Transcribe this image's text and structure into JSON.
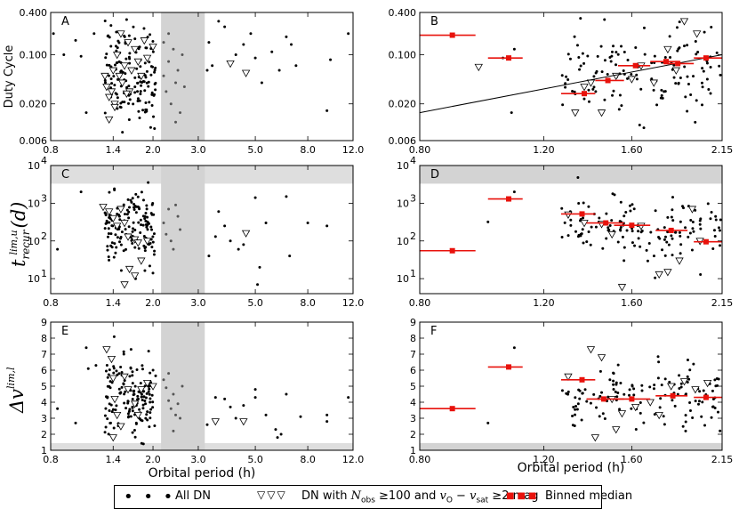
{
  "figure": {
    "xlabel_left": "Orbital period (h)",
    "xlabel_right": "Orbital period (h)",
    "ylabels": [
      "Duty Cycle",
      "t_recur^lim,u (d)",
      "Δv^lim,l"
    ],
    "ylabel_parts": {
      "t_main": "t",
      "t_sub": "recur",
      "t_sup": "lim,u",
      "t_unit": "(d)",
      "dv_main": "Δv",
      "dv_sup": "lim,l"
    }
  },
  "legend": {
    "items": [
      {
        "symbol": "dots",
        "label": "All DN"
      },
      {
        "symbol": "triangles",
        "label_pre": "DN with ",
        "label_math1": "N",
        "label_math1_sub": "obs",
        "label_mid": " ≥100 and ",
        "label_math2": "v",
        "label_math2_sub": "O",
        "label_minus": " − ",
        "label_math3": "v",
        "label_math3_sub": "sat",
        "label_post": " ≥2 mag"
      },
      {
        "symbol": "squares",
        "label": "Binned median"
      }
    ]
  },
  "colors": {
    "median": "#e8120c",
    "shade": "#d3d3d3",
    "points": "#000000",
    "gap_points": "#555555"
  },
  "chart_data": [
    {
      "panel": "A",
      "type": "scatter",
      "xscale": "log",
      "yscale": "log",
      "xlim": [
        0.8,
        12.0
      ],
      "ylim": [
        0.006,
        0.4
      ],
      "xticks": [
        0.8,
        1.4,
        2.0,
        3.0,
        5.0,
        8.0,
        12.0
      ],
      "xtick_labels": [
        "0.8",
        "1.4",
        "2.0",
        "3.0",
        "5.0",
        "8.0",
        "12.0"
      ],
      "yticks": [
        0.006,
        0.02,
        0.1,
        0.4
      ],
      "ytick_labels": [
        "0.006",
        "0.020",
        "0.100",
        "0.400"
      ],
      "shade_x": [
        2.15,
        3.18
      ],
      "triangles": [
        [
          1.3,
          0.05
        ],
        [
          1.32,
          0.035
        ],
        [
          1.35,
          0.025
        ],
        [
          1.38,
          0.03
        ],
        [
          1.4,
          0.06
        ],
        [
          1.42,
          0.02
        ],
        [
          1.45,
          0.1
        ],
        [
          1.48,
          0.05
        ],
        [
          1.5,
          0.2
        ],
        [
          1.52,
          0.04
        ],
        [
          1.55,
          0.07
        ],
        [
          1.6,
          0.15
        ],
        [
          1.62,
          0.03
        ],
        [
          1.65,
          0.06
        ],
        [
          1.7,
          0.12
        ],
        [
          1.75,
          0.08
        ],
        [
          1.8,
          0.05
        ],
        [
          1.85,
          0.16
        ],
        [
          1.9,
          0.09
        ],
        [
          2.0,
          0.13
        ],
        [
          1.35,
          0.012
        ],
        [
          1.42,
          0.018
        ],
        [
          1.58,
          0.028
        ],
        [
          4.0,
          0.075
        ],
        [
          4.6,
          0.055
        ]
      ],
      "gap_points": [
        [
          2.2,
          0.05
        ],
        [
          2.25,
          0.03
        ],
        [
          2.3,
          0.08
        ],
        [
          2.35,
          0.02
        ],
        [
          2.4,
          0.12
        ],
        [
          2.45,
          0.04
        ],
        [
          2.5,
          0.06
        ],
        [
          2.55,
          0.015
        ],
        [
          2.6,
          0.1
        ],
        [
          2.65,
          0.035
        ],
        [
          2.3,
          0.2
        ],
        [
          2.45,
          0.011
        ],
        [
          2.2,
          0.15
        ]
      ],
      "outer_points": [
        [
          0.82,
          0.2
        ],
        [
          0.9,
          0.1
        ],
        [
          1.0,
          0.16
        ],
        [
          1.05,
          0.095
        ],
        [
          1.1,
          0.015
        ],
        [
          1.18,
          0.2
        ],
        [
          3.3,
          0.15
        ],
        [
          3.4,
          0.07
        ],
        [
          3.6,
          0.3
        ],
        [
          3.8,
          0.25
        ],
        [
          4.2,
          0.1
        ],
        [
          4.5,
          0.14
        ],
        [
          5.0,
          0.09
        ],
        [
          5.3,
          0.04
        ],
        [
          5.8,
          0.11
        ],
        [
          6.2,
          0.06
        ],
        [
          6.6,
          0.18
        ],
        [
          7.2,
          0.07
        ],
        [
          9.5,
          0.016
        ],
        [
          9.8,
          0.085
        ],
        [
          11.5,
          0.2
        ],
        [
          3.25,
          0.06
        ],
        [
          4.8,
          0.2
        ],
        [
          6.9,
          0.14
        ]
      ]
    },
    {
      "panel": "B",
      "type": "scatter+median",
      "xscale": "log",
      "yscale": "log",
      "xlim": [
        0.8,
        2.15
      ],
      "ylim": [
        0.006,
        0.4
      ],
      "xticks": [
        0.8,
        1.2,
        1.6,
        2.15
      ],
      "xtick_labels": [
        "0.80",
        "1.20",
        "1.60",
        "2.15"
      ],
      "yticks": [
        0.006,
        0.02,
        0.1,
        0.4
      ],
      "ytick_labels": [
        "0.006",
        "0.020",
        "0.100",
        "0.400"
      ],
      "fit_line": [
        [
          0.8,
          0.015
        ],
        [
          2.15,
          0.1
        ]
      ],
      "median_bins": [
        {
          "x": 0.89,
          "lo": 0.8,
          "hi": 0.96,
          "y": 0.19
        },
        {
          "x": 1.07,
          "lo": 1.0,
          "hi": 1.12,
          "y": 0.09
        },
        {
          "x": 1.37,
          "lo": 1.27,
          "hi": 1.42,
          "y": 0.028
        },
        {
          "x": 1.48,
          "lo": 1.42,
          "hi": 1.56,
          "y": 0.043
        },
        {
          "x": 1.62,
          "lo": 1.53,
          "hi": 1.7,
          "y": 0.07
        },
        {
          "x": 1.79,
          "lo": 1.7,
          "hi": 1.87,
          "y": 0.08
        },
        {
          "x": 1.86,
          "lo": 1.78,
          "hi": 1.96,
          "y": 0.075
        },
        {
          "x": 2.04,
          "lo": 1.96,
          "hi": 2.15,
          "y": 0.09
        }
      ],
      "triangles": [
        [
          0.97,
          0.067
        ],
        [
          1.33,
          0.015
        ],
        [
          1.37,
          0.035
        ],
        [
          1.4,
          0.04
        ],
        [
          1.45,
          0.015
        ],
        [
          1.52,
          0.05
        ],
        [
          1.6,
          0.045
        ],
        [
          1.65,
          0.07
        ],
        [
          1.72,
          0.04
        ],
        [
          1.8,
          0.12
        ],
        [
          1.85,
          0.06
        ],
        [
          1.9,
          0.3
        ],
        [
          1.98,
          0.2
        ]
      ],
      "extra_points": [
        [
          1.08,
          0.015
        ],
        [
          1.09,
          0.12
        ],
        [
          1.05,
          0.09
        ]
      ]
    },
    {
      "panel": "C",
      "type": "scatter",
      "xscale": "log",
      "yscale": "log",
      "xlim": [
        0.8,
        12.0
      ],
      "ylim": [
        4,
        10000
      ],
      "xticks": [
        0.8,
        1.4,
        2.0,
        3.0,
        5.0,
        8.0,
        12.0
      ],
      "xtick_labels": [
        "0.8",
        "1.4",
        "2.0",
        "3.0",
        "5.0",
        "8.0",
        "12.0"
      ],
      "yticks": [
        10,
        100,
        1000,
        10000
      ],
      "ytick_labels": [
        "10^1",
        "10^2",
        "10^3",
        "10^4"
      ],
      "shade_x": [
        2.15,
        3.18
      ],
      "shade_y": [
        3300,
        10000
      ],
      "triangles": [
        [
          1.28,
          800
        ],
        [
          1.35,
          600
        ],
        [
          1.4,
          400
        ],
        [
          1.45,
          250
        ],
        [
          1.5,
          700
        ],
        [
          1.55,
          300
        ],
        [
          1.6,
          130
        ],
        [
          1.7,
          110
        ],
        [
          1.75,
          90
        ],
        [
          1.8,
          30
        ],
        [
          1.9,
          100
        ],
        [
          1.55,
          7
        ],
        [
          1.62,
          18
        ],
        [
          1.7,
          12
        ],
        [
          4.6,
          160
        ]
      ],
      "gap_points": [
        [
          2.2,
          300
        ],
        [
          2.25,
          150
        ],
        [
          2.3,
          700
        ],
        [
          2.35,
          100
        ],
        [
          2.4,
          60
        ],
        [
          2.5,
          450
        ],
        [
          2.55,
          200
        ],
        [
          2.45,
          900
        ]
      ],
      "outer_points": [
        [
          0.85,
          60
        ],
        [
          1.05,
          2000
        ],
        [
          3.3,
          40
        ],
        [
          3.5,
          130
        ],
        [
          3.6,
          600
        ],
        [
          3.8,
          250
        ],
        [
          4.0,
          100
        ],
        [
          4.3,
          60
        ],
        [
          4.5,
          80
        ],
        [
          5.0,
          1400
        ],
        [
          5.2,
          20
        ],
        [
          5.5,
          300
        ],
        [
          6.6,
          1500
        ],
        [
          6.8,
          40
        ],
        [
          8.0,
          300
        ],
        [
          9.5,
          250
        ],
        [
          5.1,
          7
        ]
      ]
    },
    {
      "panel": "D",
      "type": "scatter+median",
      "xscale": "log",
      "yscale": "log",
      "xlim": [
        0.8,
        2.15
      ],
      "ylim": [
        4,
        10000
      ],
      "xticks": [
        0.8,
        1.2,
        1.6,
        2.15
      ],
      "xtick_labels": [
        "0.80",
        "1.20",
        "1.60",
        "2.15"
      ],
      "yticks": [
        10,
        100,
        1000,
        10000
      ],
      "ytick_labels": [
        "10^1",
        "10^2",
        "10^3",
        "10^4"
      ],
      "shade_y": [
        3300,
        10000
      ],
      "median_bins": [
        {
          "x": 0.89,
          "lo": 0.8,
          "hi": 0.96,
          "y": 55
        },
        {
          "x": 1.07,
          "lo": 1.0,
          "hi": 1.12,
          "y": 1300
        },
        {
          "x": 1.36,
          "lo": 1.27,
          "hi": 1.42,
          "y": 520
        },
        {
          "x": 1.47,
          "lo": 1.38,
          "hi": 1.56,
          "y": 300
        },
        {
          "x": 1.6,
          "lo": 1.51,
          "hi": 1.7,
          "y": 260
        },
        {
          "x": 1.82,
          "lo": 1.73,
          "hi": 1.92,
          "y": 190
        },
        {
          "x": 2.04,
          "lo": 1.96,
          "hi": 2.15,
          "y": 95
        }
      ],
      "triangles": [
        [
          1.3,
          500
        ],
        [
          1.37,
          300
        ],
        [
          1.45,
          280
        ],
        [
          1.5,
          150
        ],
        [
          1.55,
          6
        ],
        [
          1.65,
          250
        ],
        [
          1.75,
          13
        ],
        [
          1.8,
          15
        ],
        [
          1.87,
          30
        ],
        [
          1.95,
          700
        ],
        [
          2.0,
          100
        ]
      ],
      "extra_points": [
        [
          1.09,
          2000
        ],
        [
          1.0,
          320
        ]
      ]
    },
    {
      "panel": "E",
      "type": "scatter",
      "xscale": "log",
      "yscale": "linear",
      "xlim": [
        0.8,
        12.0
      ],
      "ylim": [
        1,
        9
      ],
      "xticks": [
        0.8,
        1.4,
        2.0,
        3.0,
        5.0,
        8.0,
        12.0
      ],
      "xtick_labels": [
        "0.8",
        "1.4",
        "2.0",
        "3.0",
        "5.0",
        "8.0",
        "12.0"
      ],
      "yticks": [
        1,
        2,
        3,
        4,
        5,
        6,
        7,
        8,
        9
      ],
      "ytick_labels": [
        "1",
        "2",
        "3",
        "4",
        "5",
        "6",
        "7",
        "8",
        "9"
      ],
      "shade_x": [
        2.15,
        3.18
      ],
      "shade_y": [
        1,
        1.45
      ],
      "triangles": [
        [
          1.32,
          7.3
        ],
        [
          1.38,
          6.7
        ],
        [
          1.4,
          5.5
        ],
        [
          1.42,
          4.2
        ],
        [
          1.45,
          3.2
        ],
        [
          1.5,
          2.5
        ],
        [
          1.55,
          5.6
        ],
        [
          1.6,
          4.8
        ],
        [
          1.7,
          3.9
        ],
        [
          1.75,
          3.2
        ],
        [
          1.8,
          4.8
        ],
        [
          1.9,
          5.2
        ],
        [
          2.0,
          5.0
        ],
        [
          1.4,
          1.8
        ],
        [
          3.5,
          2.8
        ],
        [
          4.5,
          2.8
        ]
      ],
      "gap_points": [
        [
          2.2,
          5.4
        ],
        [
          2.25,
          4.9
        ],
        [
          2.3,
          4.1
        ],
        [
          2.35,
          3.6
        ],
        [
          2.4,
          4.5
        ],
        [
          2.45,
          3.2
        ],
        [
          2.5,
          3.9
        ],
        [
          2.55,
          3.0
        ],
        [
          2.6,
          5.0
        ],
        [
          2.3,
          5.8
        ],
        [
          2.4,
          2.2
        ]
      ],
      "outer_points": [
        [
          0.85,
          3.6
        ],
        [
          1.0,
          2.7
        ],
        [
          1.1,
          7.4
        ],
        [
          1.12,
          6.1
        ],
        [
          1.2,
          6.3
        ],
        [
          3.25,
          2.6
        ],
        [
          3.5,
          4.3
        ],
        [
          3.8,
          4.2
        ],
        [
          4.0,
          3.7
        ],
        [
          4.2,
          3.0
        ],
        [
          4.5,
          3.8
        ],
        [
          5.0,
          4.8
        ],
        [
          5.0,
          4.3
        ],
        [
          5.5,
          3.2
        ],
        [
          6.0,
          2.3
        ],
        [
          6.3,
          2.0
        ],
        [
          6.6,
          4.5
        ],
        [
          7.5,
          3.1
        ],
        [
          9.5,
          3.2
        ],
        [
          9.5,
          2.8
        ],
        [
          11.5,
          4.3
        ],
        [
          6.1,
          1.8
        ]
      ]
    },
    {
      "panel": "F",
      "type": "scatter+median",
      "xscale": "log",
      "yscale": "linear",
      "xlim": [
        0.8,
        2.15
      ],
      "ylim": [
        1,
        9
      ],
      "xticks": [
        0.8,
        1.2,
        1.6,
        2.15
      ],
      "xtick_labels": [
        "0.80",
        "1.20",
        "1.60",
        "2.15"
      ],
      "yticks": [
        1,
        2,
        3,
        4,
        5,
        6,
        7,
        8,
        9
      ],
      "ytick_labels": [
        "1",
        "2",
        "3",
        "4",
        "5",
        "6",
        "7",
        "8",
        "9"
      ],
      "shade_y": [
        1,
        1.45
      ],
      "median_bins": [
        {
          "x": 0.89,
          "lo": 0.8,
          "hi": 0.96,
          "y": 3.6
        },
        {
          "x": 1.07,
          "lo": 1.0,
          "hi": 1.12,
          "y": 6.2
        },
        {
          "x": 1.36,
          "lo": 1.27,
          "hi": 1.42,
          "y": 5.4
        },
        {
          "x": 1.46,
          "lo": 1.38,
          "hi": 1.56,
          "y": 4.2
        },
        {
          "x": 1.6,
          "lo": 1.51,
          "hi": 1.7,
          "y": 4.2
        },
        {
          "x": 1.83,
          "lo": 1.73,
          "hi": 1.92,
          "y": 4.4
        },
        {
          "x": 2.04,
          "lo": 1.96,
          "hi": 2.15,
          "y": 4.3
        }
      ],
      "triangles": [
        [
          1.3,
          5.6
        ],
        [
          1.4,
          7.3
        ],
        [
          1.45,
          6.8
        ],
        [
          1.5,
          4.2
        ],
        [
          1.55,
          3.3
        ],
        [
          1.62,
          3.7
        ],
        [
          1.7,
          4.0
        ],
        [
          1.75,
          3.2
        ],
        [
          1.82,
          5.0
        ],
        [
          1.9,
          5.3
        ],
        [
          1.97,
          4.8
        ],
        [
          2.05,
          5.2
        ],
        [
          1.42,
          1.8
        ],
        [
          1.52,
          2.3
        ]
      ],
      "extra_points": [
        [
          1.09,
          7.4
        ],
        [
          1.0,
          2.7
        ]
      ]
    }
  ]
}
